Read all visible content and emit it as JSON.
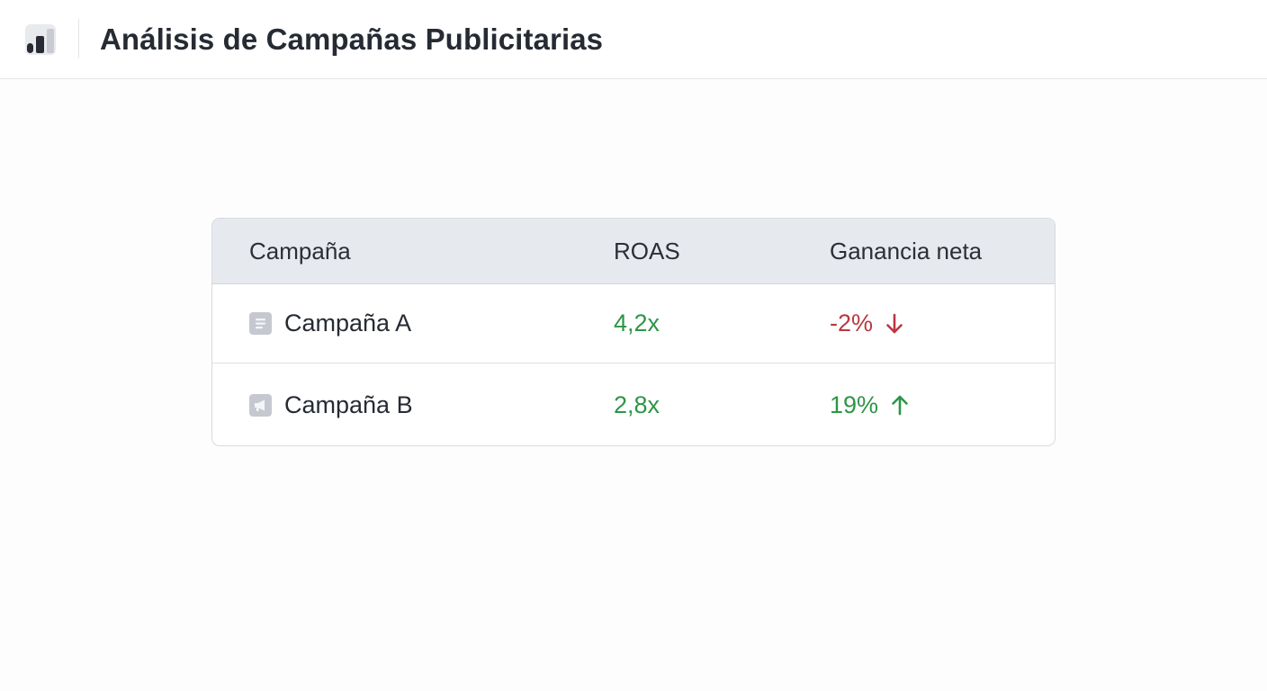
{
  "header": {
    "title": "Análisis de Campañas Publicitarias",
    "logo_icon": "bar-chart-icon"
  },
  "table": {
    "columns": [
      "Campaña",
      "ROAS",
      "Ganancia neta"
    ],
    "rows": [
      {
        "name": "Campaña A",
        "icon": "document-icon",
        "roas": "4,2x",
        "net_gain": "-2%",
        "trend": "down",
        "trend_icon": "arrow-down-icon"
      },
      {
        "name": "Campaña B",
        "icon": "megaphone-icon",
        "roas": "2,8x",
        "net_gain": "19%",
        "trend": "up",
        "trend_icon": "arrow-up-icon"
      }
    ]
  },
  "colors": {
    "positive": "#2c9646",
    "negative": "#b83840",
    "header_bg": "#e6e9ed"
  }
}
